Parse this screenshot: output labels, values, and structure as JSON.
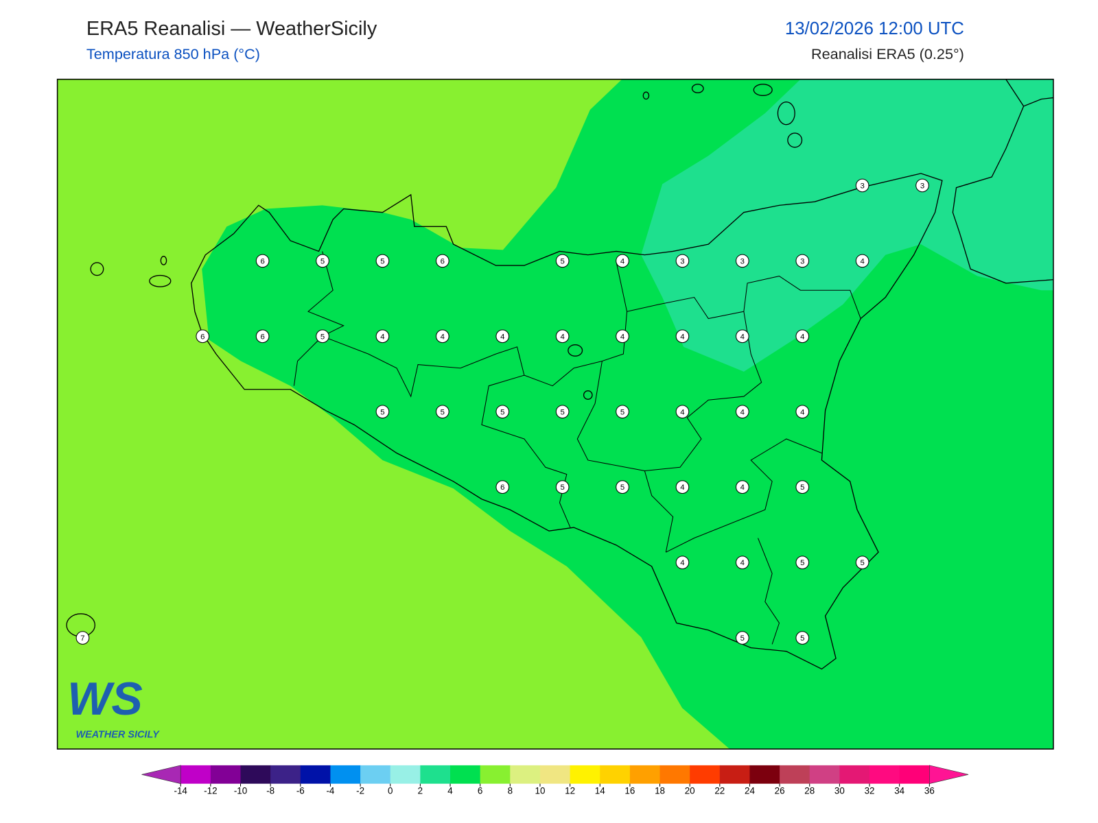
{
  "header": {
    "title": "ERA5 Reanalisi — WeatherSicily",
    "subtitle": "Temperatura 850 hPa (°C)",
    "datetime": "13/02/2026 12:00 UTC",
    "source": "Reanalisi ERA5 (0.25°)"
  },
  "points": [
    3,
    3,
    6,
    5,
    5,
    6,
    5,
    4,
    3,
    3,
    3,
    4,
    6,
    6,
    5,
    4,
    4,
    4,
    4,
    4,
    4,
    4,
    4,
    5,
    5,
    5,
    5,
    5,
    4,
    4,
    4,
    6,
    5,
    5,
    4,
    4,
    5,
    4,
    4,
    5,
    5,
    7,
    5,
    5
  ],
  "logo": {
    "initials": "WS",
    "text": "WEATHER SICILY"
  },
  "colorbar": {
    "ticks": [
      -14,
      -12,
      -10,
      -8,
      -6,
      -4,
      -2,
      0,
      2,
      4,
      6,
      8,
      10,
      12,
      14,
      16,
      18,
      20,
      22,
      24,
      26,
      28,
      30,
      32,
      34,
      36
    ],
    "colors": [
      "#c000c8",
      "#820096",
      "#2e0a5a",
      "#3c2288",
      "#0012a8",
      "#0090f0",
      "#6ccff2",
      "#98f0e6",
      "#1ee08e",
      "#00e050",
      "#88f030",
      "#dcf080",
      "#f0e682",
      "#fff200",
      "#ffd200",
      "#ffa000",
      "#ff7800",
      "#ff3c00",
      "#c81e14",
      "#7c000e",
      "#be4058",
      "#d04084",
      "#e41874",
      "#ff0a80",
      "#ff0078"
    ],
    "under_color": "#a828b4",
    "over_color": "#ff1494"
  }
}
